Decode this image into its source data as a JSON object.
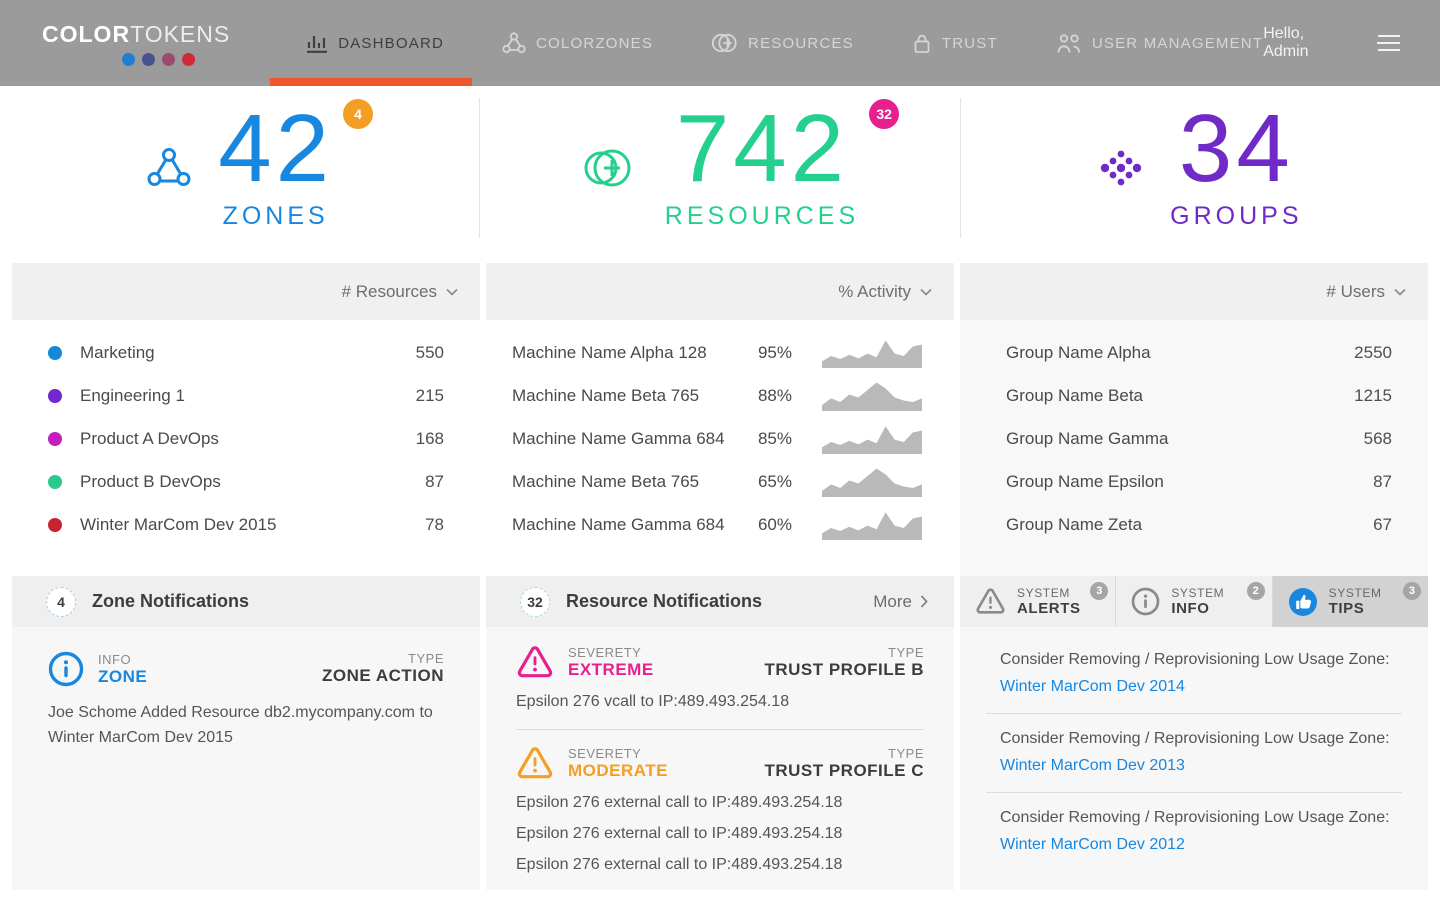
{
  "theme": {
    "accent": "#f0562b",
    "link": "#1787e0",
    "spark": "#b9b9b9",
    "nav_bg": "#9b9b9b"
  },
  "nav": {
    "logo_bold": "COLOR",
    "logo_light": "TOKENS",
    "logo_dot_colors": [
      "#1f7fd0",
      "#47538e",
      "#9d4a6e",
      "#d2293a"
    ],
    "items": [
      {
        "label": "DASHBOARD",
        "active": true
      },
      {
        "label": "COLORZONES",
        "active": false
      },
      {
        "label": "RESOURCES",
        "active": false
      },
      {
        "label": "TRUST",
        "active": false
      },
      {
        "label": "USER MANAGEMENT",
        "active": false
      }
    ],
    "greeting": "Hello, Admin"
  },
  "stats": {
    "zones": {
      "value": "42",
      "label": "ZONES",
      "badge": "4",
      "color": "#1787e0",
      "badge_color": "#f59e24"
    },
    "resources": {
      "value": "742",
      "label": "RESOURCES",
      "badge": "32",
      "color": "#25cf8e",
      "badge_color": "#e81f8f"
    },
    "groups": {
      "value": "34",
      "label": "GROUPS",
      "color": "#6f2ac8"
    }
  },
  "zones_panel": {
    "sort_label": "# Resources",
    "rows": [
      {
        "name": "Marketing",
        "value": "550",
        "color": "#1787d8"
      },
      {
        "name": "Engineering 1",
        "value": "215",
        "color": "#7227cf"
      },
      {
        "name": "Product A DevOps",
        "value": "168",
        "color": "#c21fc2"
      },
      {
        "name": "Product B DevOps",
        "value": "87",
        "color": "#2bc98c"
      },
      {
        "name": "Winter MarCom Dev 2015",
        "value": "78",
        "color": "#c82333"
      }
    ],
    "notifications": {
      "badge": "4",
      "title": "Zone Notifications",
      "item": {
        "kind_label": "INFO",
        "kind_value": "ZONE",
        "kind_color": "#1787e0",
        "type_label": "TYPE",
        "type_value": "ZONE ACTION",
        "body": "Joe Schome Added Resource db2.mycompany.com to Winter MarCom Dev 2015"
      }
    }
  },
  "resources_panel": {
    "sort_label": "% Activity",
    "spark_color": "#b9b9b9",
    "sparklines": {
      "a": [
        22,
        40,
        30,
        44,
        32,
        48,
        36,
        92,
        48,
        40,
        72,
        78
      ],
      "b": [
        20,
        42,
        30,
        55,
        45,
        70,
        95,
        75,
        45,
        35,
        30,
        42
      ]
    },
    "rows": [
      {
        "name": "Machine Name Alpha 128",
        "value": "95%",
        "spark": "a"
      },
      {
        "name": "Machine Name Beta 765",
        "value": "88%",
        "spark": "b"
      },
      {
        "name": "Machine Name Gamma 684",
        "value": "85%",
        "spark": "a"
      },
      {
        "name": "Machine Name Beta 765",
        "value": "65%",
        "spark": "b"
      },
      {
        "name": "Machine Name Gamma 684",
        "value": "60%",
        "spark": "a"
      }
    ],
    "notifications": {
      "badge": "32",
      "title": "Resource Notifications",
      "more_label": "More",
      "items": [
        {
          "severity_label": "SEVERETY",
          "severity_value": "EXTREME",
          "severity_color": "#e81f8f",
          "type_label": "TYPE",
          "type_value": "TRUST PROFILE B",
          "lines": [
            "Epsilon 276 vcall to IP:489.493.254.18"
          ]
        },
        {
          "severity_label": "SEVERETY",
          "severity_value": "MODERATE",
          "severity_color": "#f59e24",
          "type_label": "TYPE",
          "type_value": "TRUST PROFILE C",
          "lines": [
            "Epsilon 276 external call to IP:489.493.254.18",
            "Epsilon 276 external call to IP:489.493.254.18",
            "Epsilon 276 external call to IP:489.493.254.18"
          ]
        }
      ]
    }
  },
  "groups_panel": {
    "sort_label": "# Users",
    "rows": [
      {
        "name": "Group Name Alpha",
        "value": "2550"
      },
      {
        "name": "Group Name Beta",
        "value": "1215"
      },
      {
        "name": "Group Name Gamma",
        "value": "568"
      },
      {
        "name": "Group Name Epsilon",
        "value": "87"
      },
      {
        "name": "Group Name Zeta",
        "value": "67"
      }
    ],
    "tabs": [
      {
        "line1": "SYSTEM",
        "line2": "ALERTS",
        "badge": "3",
        "active": false
      },
      {
        "line1": "SYSTEM",
        "line2": "INFO",
        "badge": "2",
        "active": false
      },
      {
        "line1": "SYSTEM",
        "line2": "TIPS",
        "badge": "3",
        "active": true,
        "icon_color": "#1787e0"
      }
    ],
    "tips": [
      {
        "text": "Consider Removing / Reprovisioning Low Usage Zone:",
        "link": "Winter MarCom Dev 2014"
      },
      {
        "text": "Consider Removing / Reprovisioning Low Usage Zone:",
        "link": "Winter MarCom Dev 2013"
      },
      {
        "text": "Consider Removing / Reprovisioning Low Usage Zone:",
        "link": "Winter MarCom Dev 2012"
      }
    ]
  }
}
